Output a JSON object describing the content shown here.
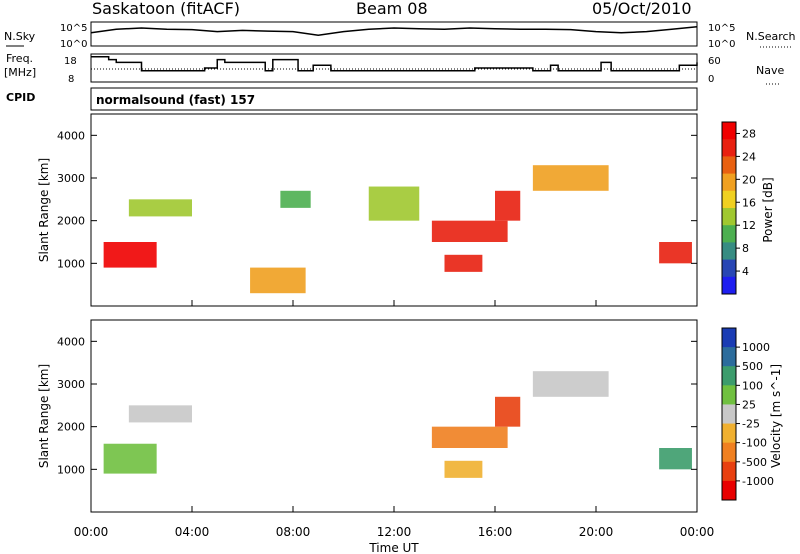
{
  "header": {
    "station": "Saskatoon (fitACF)",
    "beam": "Beam 08",
    "date": "05/Oct/2010",
    "cpid_label": "CPID",
    "cpid_value": "normalsound (fast) 157"
  },
  "chart_data": [
    {
      "type": "line",
      "panel": "noise",
      "left_label": "N.Sky",
      "right_label": "N.Search",
      "left_ticks": [
        "10^5",
        "10^0"
      ],
      "right_ticks": [
        "10^5",
        "10^0"
      ],
      "x": [
        0,
        1,
        2,
        3,
        4,
        5,
        6,
        7,
        8,
        9,
        10,
        11,
        12,
        13,
        14,
        15,
        16,
        17,
        18,
        19,
        20,
        21,
        22,
        23,
        24
      ],
      "series": [
        {
          "name": "N.Sky",
          "values": [
            0.55,
            0.7,
            0.75,
            0.7,
            0.68,
            0.6,
            0.65,
            0.62,
            0.6,
            0.45,
            0.6,
            0.7,
            0.75,
            0.72,
            0.7,
            0.75,
            0.72,
            0.7,
            0.7,
            0.68,
            0.6,
            0.55,
            0.6,
            0.7,
            0.8
          ]
        }
      ]
    },
    {
      "type": "line",
      "panel": "frequency",
      "left_label": "Freq. [MHz]",
      "right_label": "Nave",
      "left_ticks": [
        18,
        8
      ],
      "right_ticks": [
        60,
        0
      ],
      "x": [
        0,
        0.7,
        1,
        2,
        3.3,
        4.5,
        5,
        5.3,
        6.9,
        7.2,
        8.2,
        8.8,
        9.5,
        10,
        13,
        15.2,
        17.5,
        18.2,
        18.5,
        20.2,
        20.6,
        22.5,
        23.3,
        24
      ],
      "series": [
        {
          "name": "Freq",
          "values": [
            17,
            16,
            15,
            12,
            12,
            13,
            16,
            15,
            12,
            16,
            12,
            14,
            12,
            12,
            12,
            13,
            12,
            14,
            12,
            15,
            12,
            12,
            14,
            15
          ]
        }
      ]
    },
    {
      "type": "heatmap",
      "panel": "power",
      "ylabel": "Slant Range [km]",
      "yticks": [
        1000,
        2000,
        3000,
        4000
      ],
      "colorbar_label": "Power [dB]",
      "colorbar_ticks": [
        4,
        8,
        12,
        16,
        20,
        24,
        28
      ],
      "colorbar_colors": [
        "#1e1ef0",
        "#2846b4",
        "#378c82",
        "#4caf50",
        "#a0c830",
        "#f0d020",
        "#f0a020",
        "#e86010",
        "#e82010",
        "#f00000"
      ],
      "features": [
        {
          "t0": 0.5,
          "t1": 2.6,
          "r0": 900,
          "r1": 1500,
          "level": 27
        },
        {
          "t0": 1.5,
          "t1": 4.0,
          "r0": 2100,
          "r1": 2500,
          "level": 14
        },
        {
          "t0": 6.3,
          "t1": 8.5,
          "r0": 300,
          "r1": 900,
          "level": 18
        },
        {
          "t0": 7.5,
          "t1": 8.7,
          "r0": 2300,
          "r1": 2700,
          "level": 10
        },
        {
          "t0": 11,
          "t1": 13,
          "r0": 2000,
          "r1": 2800,
          "level": 12
        },
        {
          "t0": 13.5,
          "t1": 16.5,
          "r0": 1500,
          "r1": 2000,
          "level": 26
        },
        {
          "t0": 14,
          "t1": 15.5,
          "r0": 800,
          "r1": 1200,
          "level": 24
        },
        {
          "t0": 16,
          "t1": 17,
          "r0": 2000,
          "r1": 2700,
          "level": 25
        },
        {
          "t0": 17.5,
          "t1": 20.5,
          "r0": 2700,
          "r1": 3300,
          "level": 20
        },
        {
          "t0": 22.5,
          "t1": 23.8,
          "r0": 1000,
          "r1": 1500,
          "level": 26
        }
      ]
    },
    {
      "type": "heatmap",
      "panel": "velocity",
      "ylabel": "Slant Range [km]",
      "yticks": [
        1000,
        2000,
        3000,
        4000
      ],
      "colorbar_label": "Velocity [m s^-1]",
      "colorbar_ticks": [
        1000,
        500,
        100,
        25,
        -25,
        -100,
        -500,
        -1000
      ],
      "colorbar_colors": [
        "#1a3cb4",
        "#2c6c9c",
        "#3c9c6c",
        "#70c040",
        "#c8c8c8",
        "#f0b030",
        "#f08020",
        "#e84010",
        "#e80000"
      ],
      "features": [
        {
          "t0": 0.5,
          "t1": 2.6,
          "r0": 900,
          "r1": 1600,
          "level": 60
        },
        {
          "t0": 1.5,
          "t1": 4.0,
          "r0": 2100,
          "r1": 2500,
          "level": 0
        },
        {
          "t0": 13.5,
          "t1": 16.5,
          "r0": 1500,
          "r1": 2000,
          "level": -400
        },
        {
          "t0": 14,
          "t1": 15.5,
          "r0": 800,
          "r1": 1200,
          "level": -100
        },
        {
          "t0": 16,
          "t1": 17,
          "r0": 2000,
          "r1": 2700,
          "level": -600
        },
        {
          "t0": 17.5,
          "t1": 20.5,
          "r0": 2700,
          "r1": 3300,
          "level": 0
        },
        {
          "t0": 22.5,
          "t1": 23.8,
          "r0": 1000,
          "r1": 1500,
          "level": 200
        }
      ]
    }
  ],
  "x_axis": {
    "xlabel": "Time UT",
    "ticks": [
      "00:00",
      "04:00",
      "08:00",
      "12:00",
      "16:00",
      "20:00",
      "00:00"
    ]
  }
}
